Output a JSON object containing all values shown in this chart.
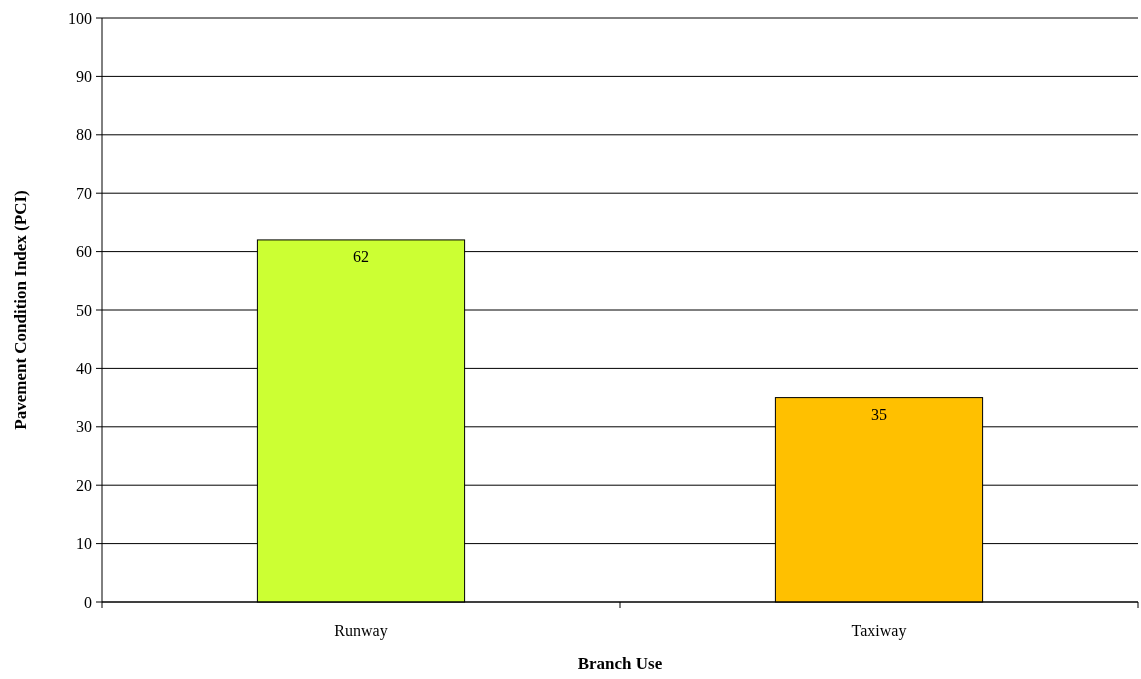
{
  "chart_data": {
    "type": "bar",
    "xlabel": "Branch Use",
    "ylabel": "Pavement Condition Index (PCI)",
    "categories": [
      "Runway",
      "Taxiway"
    ],
    "values": [
      62,
      35
    ],
    "colors": [
      "#ccff33",
      "#ffc000"
    ],
    "ylim": [
      0,
      100
    ],
    "yticks": [
      0,
      10,
      20,
      30,
      40,
      50,
      60,
      70,
      80,
      90,
      100
    ],
    "grid": "y",
    "data_labels": true
  }
}
